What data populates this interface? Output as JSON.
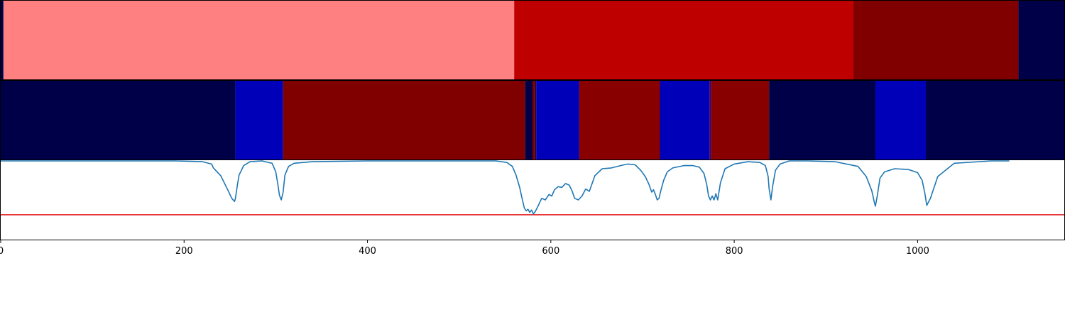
{
  "chart_data": {
    "type": "heatmap",
    "title": "",
    "xlabel": "",
    "ylabel": "",
    "xlim": [
      0,
      1160
    ],
    "x_ticks": [
      0,
      200,
      400,
      600,
      800,
      1000
    ],
    "x_tick_labels": [
      "0",
      "200",
      "400",
      "600",
      "800",
      "1000"
    ],
    "grid": false,
    "segment_rows": [
      {
        "segments": [
          {
            "start": 0,
            "end": 3,
            "color": "#000048"
          },
          {
            "start": 3,
            "end": 560,
            "color": "#ff8080"
          },
          {
            "start": 560,
            "end": 930,
            "color": "#bf0000"
          },
          {
            "start": 930,
            "end": 1110,
            "color": "#800000"
          },
          {
            "start": 1110,
            "end": 1160,
            "color": "#000048"
          }
        ]
      },
      {
        "segments": [
          {
            "start": 0,
            "end": 256,
            "color": "#000048"
          },
          {
            "start": 256,
            "end": 308,
            "color": "#0000b8"
          },
          {
            "start": 308,
            "end": 572,
            "color": "#800000"
          },
          {
            "start": 572,
            "end": 580,
            "color": "#000048"
          },
          {
            "start": 580,
            "end": 583,
            "color": "#800000"
          },
          {
            "start": 583,
            "end": 584,
            "color": "#000048"
          },
          {
            "start": 584,
            "end": 631,
            "color": "#0000b8"
          },
          {
            "start": 631,
            "end": 719,
            "color": "#880000"
          },
          {
            "start": 719,
            "end": 773,
            "color": "#0000b8"
          },
          {
            "start": 773,
            "end": 775,
            "color": "#400060"
          },
          {
            "start": 775,
            "end": 838,
            "color": "#880000"
          },
          {
            "start": 838,
            "end": 954,
            "color": "#000048"
          },
          {
            "start": 954,
            "end": 1009,
            "color": "#0000b8"
          },
          {
            "start": 1009,
            "end": 1160,
            "color": "#000048"
          }
        ]
      }
    ],
    "line_panel": {
      "ylim": [
        0,
        1
      ],
      "line_color": "#1f77b4",
      "threshold": 0.31,
      "threshold_color": "#e41a1c",
      "x": [
        0,
        190,
        220,
        230,
        232,
        240,
        248,
        252,
        255,
        256,
        258,
        260,
        265,
        272,
        285,
        296,
        300,
        302,
        304,
        306,
        308,
        310,
        314,
        320,
        340,
        400,
        500,
        540,
        552,
        558,
        562,
        566,
        569,
        571,
        573,
        575,
        577,
        579,
        581,
        583,
        586,
        590,
        594,
        598,
        601,
        604,
        608,
        612,
        616,
        620,
        623,
        626,
        630,
        634,
        638,
        642,
        648,
        656,
        666,
        676,
        684,
        692,
        698,
        703,
        707,
        710,
        712,
        714,
        716,
        718,
        720,
        723,
        727,
        733,
        745,
        755,
        762,
        767,
        770,
        772,
        774,
        776,
        778,
        780,
        782,
        785,
        790,
        800,
        815,
        828,
        834,
        837,
        838,
        840,
        842,
        845,
        850,
        860,
        880,
        910,
        935,
        944,
        950,
        953,
        954,
        956,
        959,
        964,
        975,
        990,
        1000,
        1005,
        1008,
        1010,
        1014,
        1022,
        1040,
        1080,
        1100
      ],
      "y": [
        1.0,
        1.0,
        0.99,
        0.96,
        0.91,
        0.81,
        0.62,
        0.52,
        0.48,
        0.52,
        0.68,
        0.82,
        0.94,
        0.99,
        1.0,
        0.97,
        0.86,
        0.72,
        0.56,
        0.5,
        0.6,
        0.82,
        0.93,
        0.97,
        0.99,
        1.0,
        1.0,
        1.0,
        0.98,
        0.93,
        0.82,
        0.66,
        0.5,
        0.4,
        0.36,
        0.38,
        0.34,
        0.37,
        0.32,
        0.35,
        0.42,
        0.52,
        0.5,
        0.57,
        0.55,
        0.63,
        0.67,
        0.66,
        0.71,
        0.69,
        0.62,
        0.52,
        0.5,
        0.55,
        0.64,
        0.61,
        0.81,
        0.9,
        0.91,
        0.94,
        0.96,
        0.95,
        0.88,
        0.8,
        0.7,
        0.6,
        0.63,
        0.57,
        0.5,
        0.52,
        0.62,
        0.75,
        0.86,
        0.91,
        0.94,
        0.94,
        0.92,
        0.84,
        0.7,
        0.55,
        0.5,
        0.55,
        0.5,
        0.58,
        0.5,
        0.72,
        0.9,
        0.96,
        0.99,
        0.98,
        0.94,
        0.8,
        0.65,
        0.5,
        0.68,
        0.88,
        0.96,
        1.0,
        1.0,
        0.99,
        0.93,
        0.8,
        0.62,
        0.46,
        0.42,
        0.55,
        0.78,
        0.86,
        0.9,
        0.89,
        0.85,
        0.75,
        0.58,
        0.43,
        0.52,
        0.8,
        0.97,
        1.0,
        1.0,
        1.0
      ]
    }
  }
}
